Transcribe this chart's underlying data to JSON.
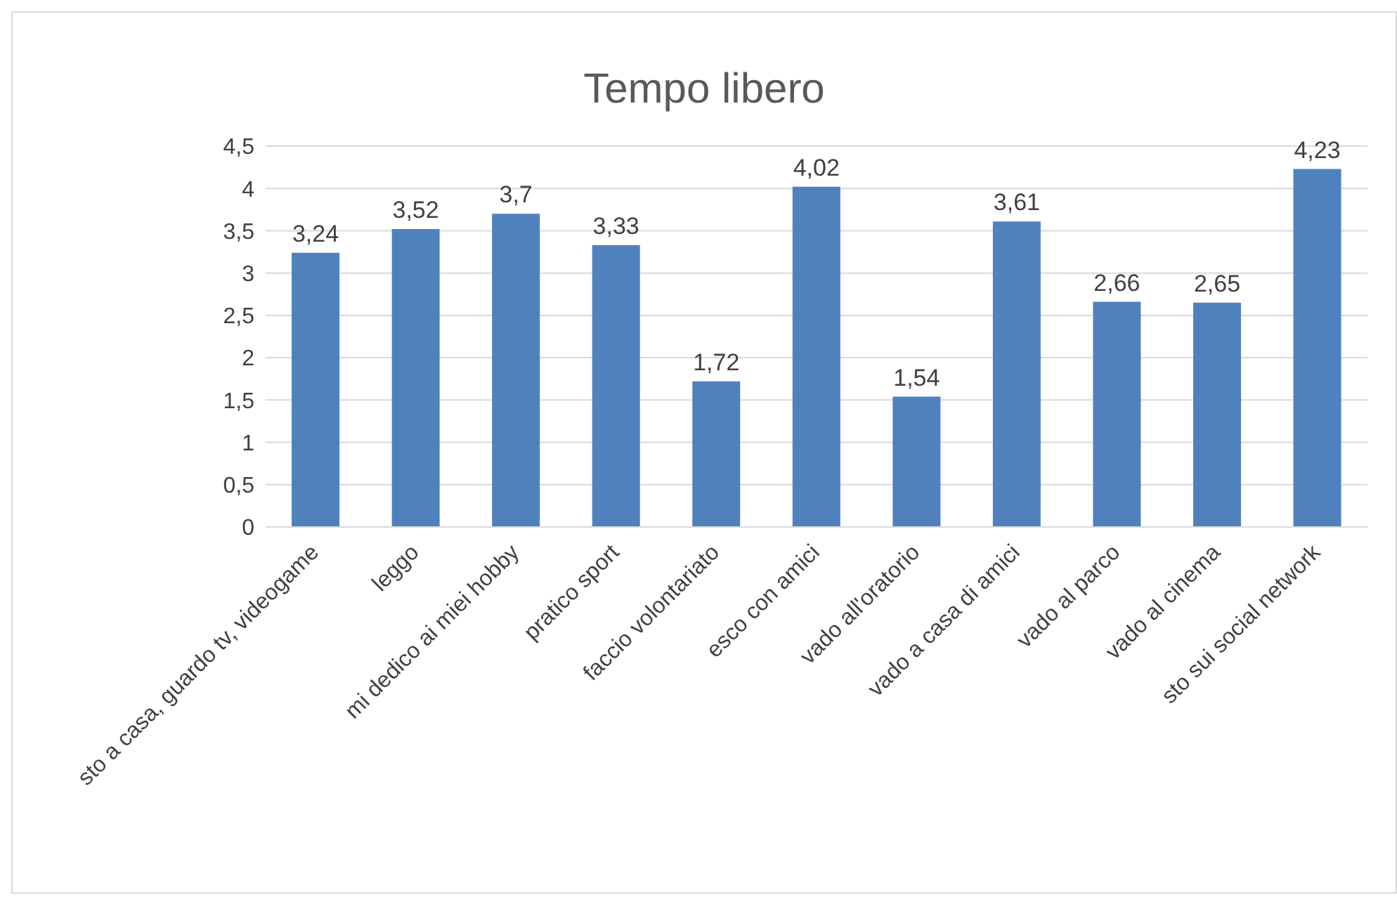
{
  "chart_data": {
    "type": "bar",
    "title": "Tempo libero",
    "categories": [
      "sto a casa, guardo tv, videogame",
      "leggo",
      "mi dedico ai miei hobby",
      "pratico sport",
      "faccio volontariato",
      "esco con amici",
      "vado all'oratorio",
      "vado a casa di amici",
      "vado al parco",
      "vado al cinema",
      "sto sui social network"
    ],
    "values": [
      3.24,
      3.52,
      3.7,
      3.33,
      1.72,
      4.02,
      1.54,
      3.61,
      2.66,
      2.65,
      4.23
    ],
    "value_labels": [
      "3,24",
      "3,52",
      "3,7",
      "3,33",
      "1,72",
      "4,02",
      "1,54",
      "3,61",
      "2,66",
      "2,65",
      "4,23"
    ],
    "color": "#4f81bd",
    "ylim": [
      0,
      4.5
    ],
    "yticks": [
      0,
      {
        "value": 0.5,
        "label": "0,5"
      },
      1,
      {
        "value": 1.5,
        "label": "1,5"
      },
      2,
      {
        "value": 2.5,
        "label": "2,5"
      },
      3,
      {
        "value": 3.5,
        "label": "3,5"
      },
      4,
      {
        "value": 4.5,
        "label": "4,5"
      }
    ],
    "grid": "y",
    "legend": false
  }
}
